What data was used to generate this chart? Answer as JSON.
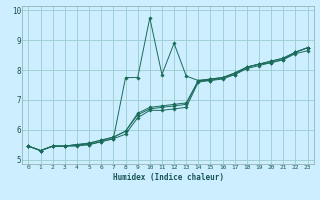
{
  "xlabel": "Humidex (Indice chaleur)",
  "background_color": "#cceeff",
  "line_color": "#1a6b5a",
  "grid_color": "#99cccc",
  "xlim": [
    -0.5,
    23.5
  ],
  "ylim": [
    4.85,
    10.15
  ],
  "xticks": [
    0,
    1,
    2,
    3,
    4,
    5,
    6,
    7,
    8,
    9,
    10,
    11,
    12,
    13,
    14,
    15,
    16,
    17,
    18,
    19,
    20,
    21,
    22,
    23
  ],
  "yticks": [
    5,
    6,
    7,
    8,
    9,
    10
  ],
  "series": [
    [
      5.45,
      5.3,
      5.45,
      5.45,
      5.45,
      5.5,
      5.6,
      5.7,
      7.75,
      7.75,
      9.75,
      7.85,
      8.9,
      7.8,
      7.65,
      7.65,
      7.75,
      7.9,
      8.1,
      8.2,
      8.25,
      8.35,
      8.6,
      8.75
    ],
    [
      5.45,
      5.3,
      5.45,
      5.45,
      5.5,
      5.5,
      5.6,
      5.7,
      5.85,
      6.4,
      6.65,
      6.65,
      6.7,
      6.75,
      7.6,
      7.65,
      7.7,
      7.85,
      8.05,
      8.15,
      8.25,
      8.35,
      8.55,
      8.65
    ],
    [
      5.45,
      5.3,
      5.45,
      5.45,
      5.5,
      5.55,
      5.65,
      5.75,
      5.95,
      6.5,
      6.7,
      6.75,
      6.8,
      6.85,
      7.65,
      7.7,
      7.75,
      7.85,
      8.1,
      8.2,
      8.3,
      8.4,
      8.6,
      8.75
    ],
    [
      5.45,
      5.3,
      5.45,
      5.45,
      5.5,
      5.55,
      5.65,
      5.75,
      5.95,
      6.55,
      6.75,
      6.8,
      6.85,
      6.9,
      7.65,
      7.7,
      7.75,
      7.9,
      8.1,
      8.2,
      8.3,
      8.4,
      8.6,
      8.75
    ]
  ]
}
